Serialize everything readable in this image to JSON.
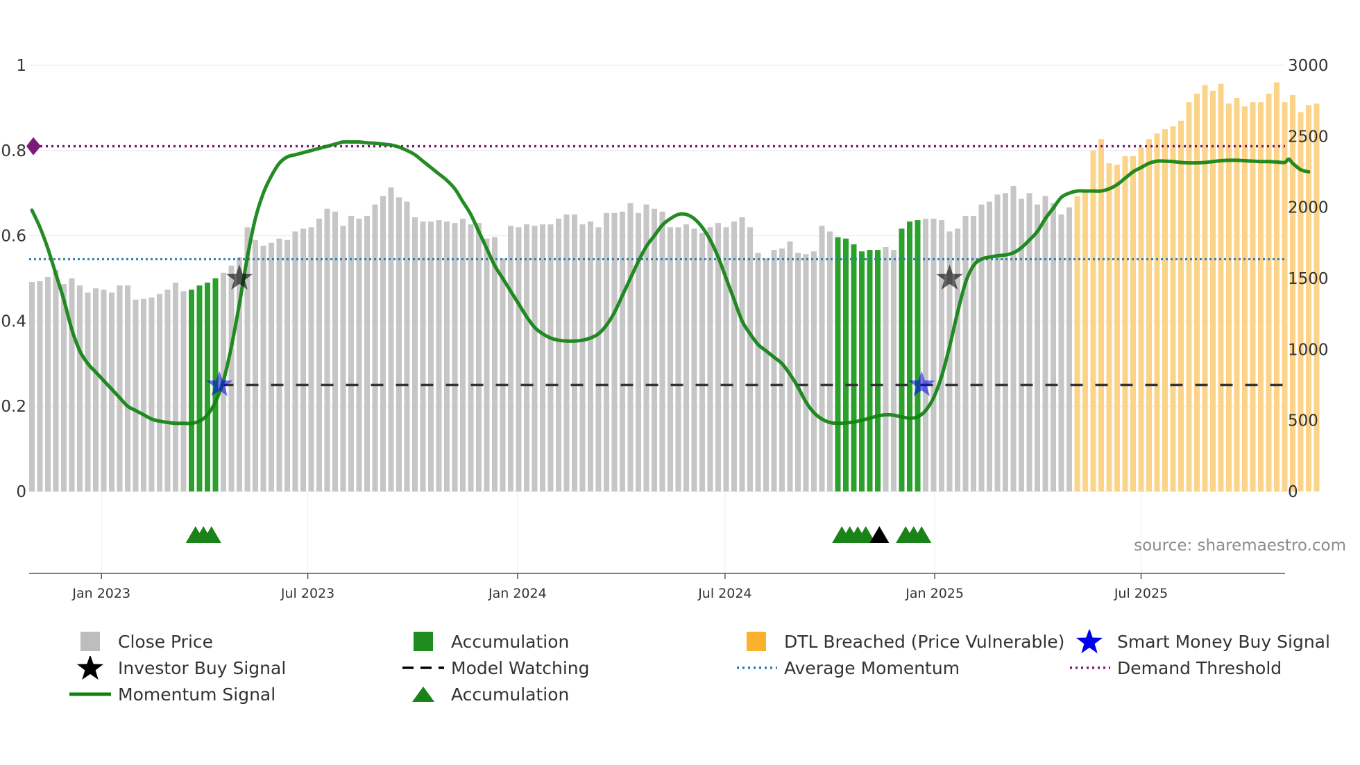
{
  "chart_data": {
    "type": "bar+line",
    "title": "",
    "x_ticks": [
      "Jan 2023",
      "Jul 2023",
      "Jan 2024",
      "Jul 2024",
      "Jan 2025",
      "Jul 2025"
    ],
    "left_axis": {
      "ticks": [
        "0",
        "0.2",
        "0.4",
        "0.6",
        "0.8",
        "1"
      ],
      "ylim": [
        0,
        1
      ]
    },
    "right_axis": {
      "ticks": [
        "0",
        "500",
        "1000",
        "1500",
        "2000",
        "2500",
        "3000"
      ],
      "ylim": [
        0,
        3000
      ]
    },
    "close_price": {
      "name": "Close Price",
      "start_date": "2022-11-01",
      "interval_days": 7,
      "values": [
        1475,
        1480,
        1510,
        1560,
        1460,
        1500,
        1450,
        1400,
        1430,
        1420,
        1400,
        1450,
        1450,
        1350,
        1355,
        1365,
        1390,
        1420,
        1470,
        1410,
        1420,
        1450,
        1470,
        1500,
        1540,
        1590,
        1650,
        1860,
        1770,
        1730,
        1750,
        1780,
        1770,
        1830,
        1850,
        1860,
        1920,
        1990,
        1970,
        1870,
        1940,
        1920,
        1940,
        2020,
        2080,
        2140,
        2070,
        2040,
        1930,
        1900,
        1900,
        1910,
        1900,
        1890,
        1920,
        1880,
        1890,
        1780,
        1790,
        1640,
        1870,
        1860,
        1880,
        1870,
        1880,
        1880,
        1920,
        1950,
        1950,
        1880,
        1900,
        1860,
        1960,
        1960,
        1970,
        2030,
        1960,
        2020,
        1990,
        1970,
        1860,
        1860,
        1880,
        1850,
        1820,
        1860,
        1890,
        1860,
        1900,
        1930,
        1860,
        1680,
        1640,
        1700,
        1710,
        1760,
        1680,
        1670,
        1690,
        1870,
        1830,
        1790,
        1780,
        1740,
        1690,
        1700,
        1700,
        1720,
        1700,
        1850,
        1900,
        1910,
        1920,
        1920,
        1910,
        1830,
        1850,
        1940,
        1940,
        2020,
        2040,
        2090,
        2100,
        2150,
        2060,
        2100,
        2020,
        2080,
        2030,
        1950,
        2000,
        2080,
        2120,
        2400,
        2480,
        2310,
        2300,
        2360,
        2360,
        2420,
        2480,
        2520,
        2550,
        2570,
        2610,
        2740,
        2800,
        2860,
        2820,
        2870,
        2730,
        2770,
        2710,
        2740,
        2740,
        2800,
        2880,
        2740,
        2790,
        2670,
        2720,
        2730
      ],
      "accumulation_ranges": [
        [
          20,
          23
        ],
        [
          101,
          106
        ],
        [
          109,
          111
        ]
      ],
      "dtl_start": 131
    },
    "momentum_signal": {
      "name": "Momentum Signal",
      "points": [
        [
          0,
          0.66
        ],
        [
          1,
          0.62
        ],
        [
          2,
          0.57
        ],
        [
          3,
          0.51
        ],
        [
          4,
          0.45
        ],
        [
          5,
          0.38
        ],
        [
          6,
          0.33
        ],
        [
          7,
          0.3
        ],
        [
          8,
          0.28
        ],
        [
          9,
          0.26
        ],
        [
          10,
          0.24
        ],
        [
          11,
          0.22
        ],
        [
          12,
          0.2
        ],
        [
          13,
          0.19
        ],
        [
          14,
          0.18
        ],
        [
          15,
          0.17
        ],
        [
          16,
          0.165
        ],
        [
          17,
          0.162
        ],
        [
          18,
          0.16
        ],
        [
          19,
          0.16
        ],
        [
          20,
          0.16
        ],
        [
          21,
          0.165
        ],
        [
          22,
          0.18
        ],
        [
          23,
          0.21
        ],
        [
          24,
          0.26
        ],
        [
          25,
          0.34
        ],
        [
          26,
          0.44
        ],
        [
          27,
          0.55
        ],
        [
          28,
          0.64
        ],
        [
          29,
          0.7
        ],
        [
          30,
          0.74
        ],
        [
          31,
          0.77
        ],
        [
          32,
          0.785
        ],
        [
          33,
          0.79
        ],
        [
          34,
          0.795
        ],
        [
          35,
          0.8
        ],
        [
          36,
          0.805
        ],
        [
          37,
          0.81
        ],
        [
          38,
          0.815
        ],
        [
          39,
          0.82
        ],
        [
          40,
          0.82
        ],
        [
          41,
          0.82
        ],
        [
          42,
          0.818
        ],
        [
          43,
          0.817
        ],
        [
          44,
          0.815
        ],
        [
          45,
          0.813
        ],
        [
          46,
          0.808
        ],
        [
          47,
          0.8
        ],
        [
          48,
          0.79
        ],
        [
          49,
          0.775
        ],
        [
          50,
          0.76
        ],
        [
          51,
          0.745
        ],
        [
          52,
          0.73
        ],
        [
          53,
          0.71
        ],
        [
          54,
          0.68
        ],
        [
          55,
          0.65
        ],
        [
          56,
          0.61
        ],
        [
          57,
          0.57
        ],
        [
          58,
          0.53
        ],
        [
          59,
          0.5
        ],
        [
          60,
          0.47
        ],
        [
          61,
          0.44
        ],
        [
          62,
          0.41
        ],
        [
          63,
          0.385
        ],
        [
          64,
          0.37
        ],
        [
          65,
          0.36
        ],
        [
          66,
          0.355
        ],
        [
          67,
          0.353
        ],
        [
          68,
          0.353
        ],
        [
          69,
          0.355
        ],
        [
          70,
          0.36
        ],
        [
          71,
          0.37
        ],
        [
          72,
          0.39
        ],
        [
          73,
          0.42
        ],
        [
          74,
          0.46
        ],
        [
          75,
          0.5
        ],
        [
          76,
          0.54
        ],
        [
          77,
          0.575
        ],
        [
          78,
          0.6
        ],
        [
          79,
          0.625
        ],
        [
          80,
          0.64
        ],
        [
          81,
          0.65
        ],
        [
          82,
          0.65
        ],
        [
          83,
          0.64
        ],
        [
          84,
          0.62
        ],
        [
          85,
          0.59
        ],
        [
          86,
          0.55
        ],
        [
          87,
          0.5
        ],
        [
          88,
          0.45
        ],
        [
          89,
          0.4
        ],
        [
          90,
          0.37
        ],
        [
          91,
          0.345
        ],
        [
          92,
          0.33
        ],
        [
          93,
          0.315
        ],
        [
          94,
          0.3
        ],
        [
          95,
          0.275
        ],
        [
          96,
          0.245
        ],
        [
          97,
          0.21
        ],
        [
          98,
          0.185
        ],
        [
          99,
          0.17
        ],
        [
          100,
          0.162
        ],
        [
          101,
          0.16
        ],
        [
          102,
          0.161
        ],
        [
          103,
          0.163
        ],
        [
          104,
          0.167
        ],
        [
          105,
          0.172
        ],
        [
          106,
          0.177
        ],
        [
          107,
          0.18
        ],
        [
          108,
          0.179
        ],
        [
          109,
          0.175
        ],
        [
          110,
          0.172
        ],
        [
          111,
          0.175
        ],
        [
          112,
          0.19
        ],
        [
          113,
          0.22
        ],
        [
          114,
          0.27
        ],
        [
          115,
          0.34
        ],
        [
          116,
          0.42
        ],
        [
          117,
          0.49
        ],
        [
          118,
          0.53
        ],
        [
          119,
          0.545
        ],
        [
          120,
          0.55
        ],
        [
          121,
          0.553
        ],
        [
          122,
          0.555
        ],
        [
          123,
          0.56
        ],
        [
          124,
          0.572
        ],
        [
          125,
          0.59
        ],
        [
          126,
          0.61
        ],
        [
          127,
          0.64
        ],
        [
          128,
          0.665
        ],
        [
          129,
          0.69
        ],
        [
          130,
          0.7
        ],
        [
          131,
          0.705
        ],
        [
          132,
          0.705
        ],
        [
          133,
          0.705
        ],
        [
          134,
          0.705
        ],
        [
          135,
          0.71
        ],
        [
          136,
          0.72
        ],
        [
          137,
          0.735
        ],
        [
          138,
          0.75
        ],
        [
          139,
          0.76
        ],
        [
          140,
          0.77
        ],
        [
          141,
          0.775
        ],
        [
          142,
          0.775
        ],
        [
          143,
          0.774
        ],
        [
          144,
          0.772
        ],
        [
          145,
          0.771
        ],
        [
          146,
          0.771
        ],
        [
          147,
          0.772
        ],
        [
          148,
          0.774
        ],
        [
          149,
          0.776
        ],
        [
          150,
          0.777
        ],
        [
          151,
          0.777
        ],
        [
          152,
          0.776
        ],
        [
          153,
          0.775
        ],
        [
          154,
          0.774
        ],
        [
          155,
          0.774
        ],
        [
          156,
          0.773
        ],
        [
          157,
          0.772
        ],
        [
          157.5,
          0.78
        ],
        [
          158,
          0.77
        ],
        [
          159,
          0.755
        ],
        [
          160,
          0.75
        ]
      ]
    },
    "average_momentum": {
      "name": "Average Momentum",
      "value": 0.545
    },
    "demand_threshold": {
      "name": "Demand Threshold",
      "value": 0.81
    },
    "model_watching": {
      "name": "Model Watching",
      "value": 0.25,
      "start_index": 23
    },
    "investor_buy_signals": [
      {
        "index": 26,
        "value": 0.5
      },
      {
        "index": 115,
        "value": 0.5
      }
    ],
    "smart_money_buy_signals": [
      {
        "index": 23.5,
        "value": 0.25
      },
      {
        "index": 111.5,
        "value": 0.25
      }
    ],
    "accumulation_markers": [
      {
        "index": 20.5,
        "color": "#198219"
      },
      {
        "index": 21.5,
        "color": "#198219"
      },
      {
        "index": 22.5,
        "color": "#198219"
      },
      {
        "index": 101.5,
        "color": "#198219"
      },
      {
        "index": 102.5,
        "color": "#198219"
      },
      {
        "index": 103.5,
        "color": "#198219"
      },
      {
        "index": 104.5,
        "color": "#198219"
      },
      {
        "index": 106.2,
        "color": "#000000"
      },
      {
        "index": 109.5,
        "color": "#198219"
      },
      {
        "index": 110.5,
        "color": "#198219"
      },
      {
        "index": 111.5,
        "color": "#198219"
      }
    ],
    "source": "source: sharemaestro.com",
    "legend": [
      "Close Price",
      "Accumulation",
      "DTL Breached (Price Vulnerable)",
      "Smart Money Buy Signal",
      "Investor Buy Signal",
      "Model Watching",
      "Average Momentum",
      "Demand Threshold",
      "Momentum Signal",
      "Accumulation"
    ],
    "legend_placement": "bottom"
  },
  "colors": {
    "price_bar": "#c6c6c6",
    "accumulation": "#2ca02c",
    "dtl": "#fbd48a",
    "momentum": "#118211",
    "average": "#2b7bb1",
    "threshold": "#7a1a7a",
    "watching": "#333333",
    "smart_money": "#0000ee",
    "investor": "#000000",
    "triangle": "#198219"
  },
  "legend_items": [
    {
      "label": "Close Price",
      "icon": "square-icon",
      "color": "#bdbdbd"
    },
    {
      "label": "Accumulation",
      "icon": "square-icon",
      "color": "#1f8c1f"
    },
    {
      "label": "DTL Breached (Price Vulnerable)",
      "icon": "square-icon",
      "color": "#fbb12b"
    },
    {
      "label": "Smart Money Buy Signal",
      "icon": "star-icon",
      "color": "#0000ee"
    },
    {
      "label": "Investor Buy Signal",
      "icon": "star-icon",
      "color": "#000000"
    },
    {
      "label": "Model Watching",
      "icon": "dashed-line-icon",
      "color": "#000000"
    },
    {
      "label": "Average Momentum",
      "icon": "dotted-line-icon",
      "color": "#2b7bb1"
    },
    {
      "label": "Demand Threshold",
      "icon": "dotted-line-icon",
      "color": "#7a1a7a"
    },
    {
      "label": "Momentum Signal",
      "icon": "solid-line-icon",
      "color": "#118211"
    },
    {
      "label": "Accumulation",
      "icon": "triangle-icon",
      "color": "#198219"
    }
  ]
}
